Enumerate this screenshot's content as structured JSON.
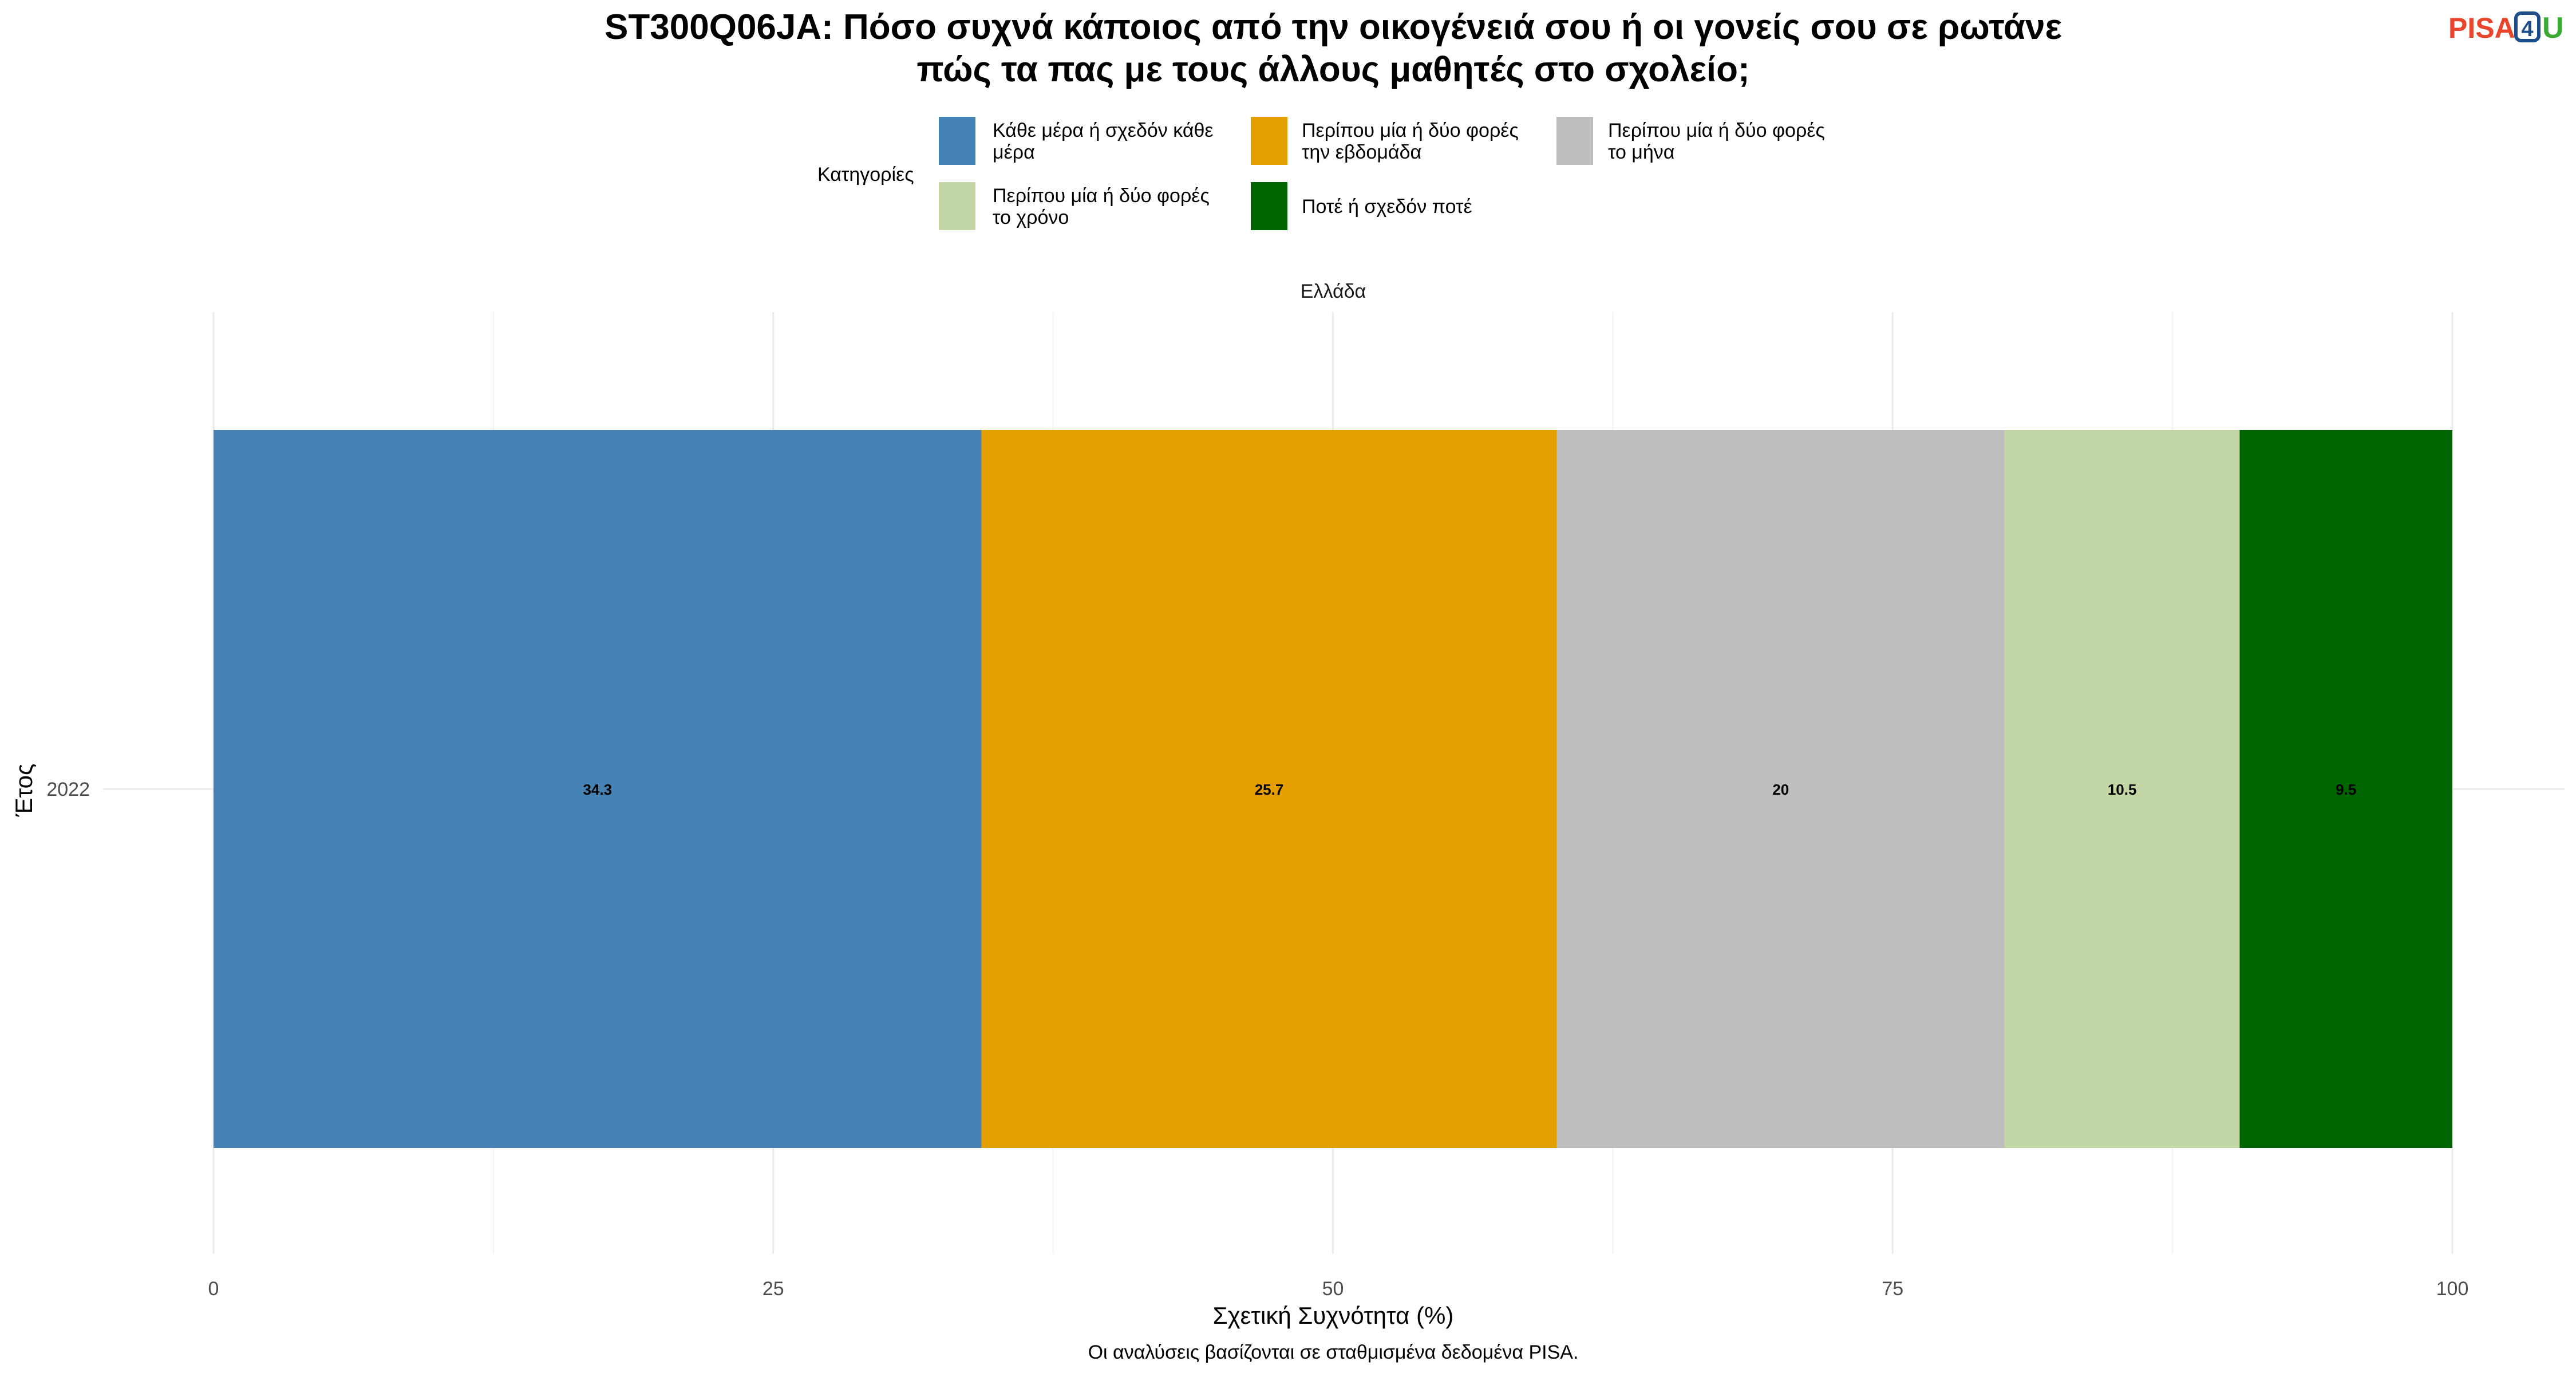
{
  "logo": {
    "text_pisa": "PISA",
    "text_4": "4",
    "text_u": "U",
    "colors": {
      "pisa": "#E8452C",
      "four": "#1F4E8C",
      "u": "#3AAA35"
    }
  },
  "legend": {
    "title": "Κατηγορίες",
    "items": [
      {
        "color": "#4682B4",
        "line1": "Κάθε μέρα ή σχεδόν κάθε",
        "line2": "μέρα"
      },
      {
        "color": "#E69F00",
        "line1": "Περίπου μία ή δύο φορές",
        "line2": "την εβδομάδα"
      },
      {
        "color": "#BEBEBE",
        "line1": "Περίπου μία ή δύο φορές",
        "line2": "το μήνα"
      },
      {
        "color": "#C2D7A5",
        "line1": "Περίπου μία ή δύο φορές",
        "line2": "το χρόνο"
      },
      {
        "color": "#006400",
        "line1": "Ποτέ ή σχεδόν ποτέ",
        "line2": ""
      }
    ]
  },
  "caption": "Οι αναλύσεις βασίζονται σε σταθμισμένα δεδομένα PISA.",
  "chart_data": {
    "type": "bar",
    "orientation": "horizontal",
    "stacked": true,
    "title_line1": "ST300Q06JA: Πόσο συχνά κάποιος από την οικογένειά σου ή οι γονείς σου σε ρωτάνε",
    "title_line2": "πώς τα πας με τους άλλους μαθητές στο σχολείο;",
    "facet_label": "Ελλάδα",
    "xlabel": "Σχετική Συχνότητα (%)",
    "ylabel": "Έτος",
    "xlim": [
      0,
      100
    ],
    "x_ticks": [
      0,
      25,
      50,
      75,
      100
    ],
    "x_tick_labels": [
      "0",
      "25",
      "50",
      "75",
      "100"
    ],
    "grid": true,
    "legend_position": "top",
    "categories": [
      "2022"
    ],
    "series": [
      {
        "name": "Κάθε μέρα ή σχεδόν κάθε μέρα",
        "color": "#4682B4",
        "values": [
          34.3
        ],
        "label": "34.3"
      },
      {
        "name": "Περίπου μία ή δύο φορές την εβδομάδα",
        "color": "#E69F00",
        "values": [
          25.7
        ],
        "label": "25.7"
      },
      {
        "name": "Περίπου μία ή δύο φορές το μήνα",
        "color": "#BEBEBE",
        "values": [
          20
        ],
        "label": "20"
      },
      {
        "name": "Περίπου μία ή δύο φορές το χρόνο",
        "color": "#C2D7A5",
        "values": [
          10.5
        ],
        "label": "10.5"
      },
      {
        "name": "Ποτέ ή σχεδόν ποτέ",
        "color": "#006400",
        "values": [
          9.5
        ],
        "label": "9.5"
      }
    ]
  }
}
